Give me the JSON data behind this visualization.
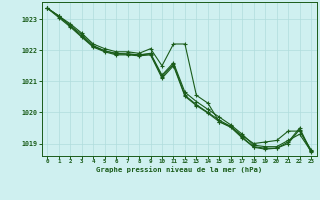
{
  "background_color": "#cff0f0",
  "grid_color": "#b0dddd",
  "line_color": "#1a5c1a",
  "title": "Graphe pression niveau de la mer (hPa)",
  "xlim": [
    -0.5,
    23.5
  ],
  "ylim": [
    1018.6,
    1023.55
  ],
  "yticks": [
    1019,
    1020,
    1021,
    1022,
    1023
  ],
  "xticks": [
    0,
    1,
    2,
    3,
    4,
    5,
    6,
    7,
    8,
    9,
    10,
    11,
    12,
    13,
    14,
    15,
    16,
    17,
    18,
    19,
    20,
    21,
    22,
    23
  ],
  "series": [
    {
      "x": [
        0,
        1,
        2,
        3,
        4,
        5,
        6,
        7,
        8,
        9,
        10,
        11,
        12,
        13,
        14,
        15,
        16,
        17,
        18,
        19,
        20,
        21,
        22,
        23
      ],
      "y": [
        1023.35,
        1023.1,
        1022.85,
        1022.55,
        1022.2,
        1022.05,
        1021.95,
        1021.95,
        1021.9,
        1022.05,
        1021.5,
        1022.2,
        1022.2,
        1020.55,
        1020.3,
        1019.7,
        1019.55,
        1019.25,
        1019.0,
        1019.05,
        1019.1,
        1019.4,
        1019.4,
        1018.8
      ]
    },
    {
      "x": [
        0,
        1,
        2,
        3,
        4,
        5,
        6,
        7,
        8,
        9,
        10,
        11,
        12,
        13,
        14,
        15,
        16,
        17,
        18,
        19,
        20,
        21,
        22,
        23
      ],
      "y": [
        1023.35,
        1023.1,
        1022.8,
        1022.5,
        1022.15,
        1021.98,
        1021.88,
        1021.88,
        1021.85,
        1021.9,
        1021.2,
        1021.6,
        1020.65,
        1020.35,
        1020.1,
        1019.85,
        1019.6,
        1019.3,
        1018.95,
        1018.9,
        1018.9,
        1019.1,
        1019.3,
        1018.75
      ]
    },
    {
      "x": [
        0,
        1,
        2,
        3,
        4,
        5,
        6,
        7,
        8,
        9,
        10,
        11,
        12,
        13,
        14,
        15,
        16,
        17,
        18,
        19,
        20,
        21,
        22,
        23
      ],
      "y": [
        1023.35,
        1023.1,
        1022.78,
        1022.45,
        1022.12,
        1021.98,
        1021.9,
        1021.88,
        1021.85,
        1021.88,
        1021.15,
        1021.55,
        1020.55,
        1020.25,
        1020.0,
        1019.75,
        1019.55,
        1019.2,
        1018.9,
        1018.85,
        1018.85,
        1019.05,
        1019.5,
        1018.75
      ]
    },
    {
      "x": [
        0,
        1,
        2,
        3,
        4,
        5,
        6,
        7,
        8,
        9,
        10,
        11,
        12,
        13,
        14,
        15,
        16,
        17,
        18,
        19,
        20,
        21,
        22,
        23
      ],
      "y": [
        1023.35,
        1023.05,
        1022.75,
        1022.42,
        1022.1,
        1021.95,
        1021.85,
        1021.85,
        1021.82,
        1021.85,
        1021.1,
        1021.5,
        1020.52,
        1020.22,
        1019.98,
        1019.7,
        1019.52,
        1019.18,
        1018.88,
        1018.82,
        1018.85,
        1019.0,
        1019.45,
        1018.72
      ]
    }
  ]
}
